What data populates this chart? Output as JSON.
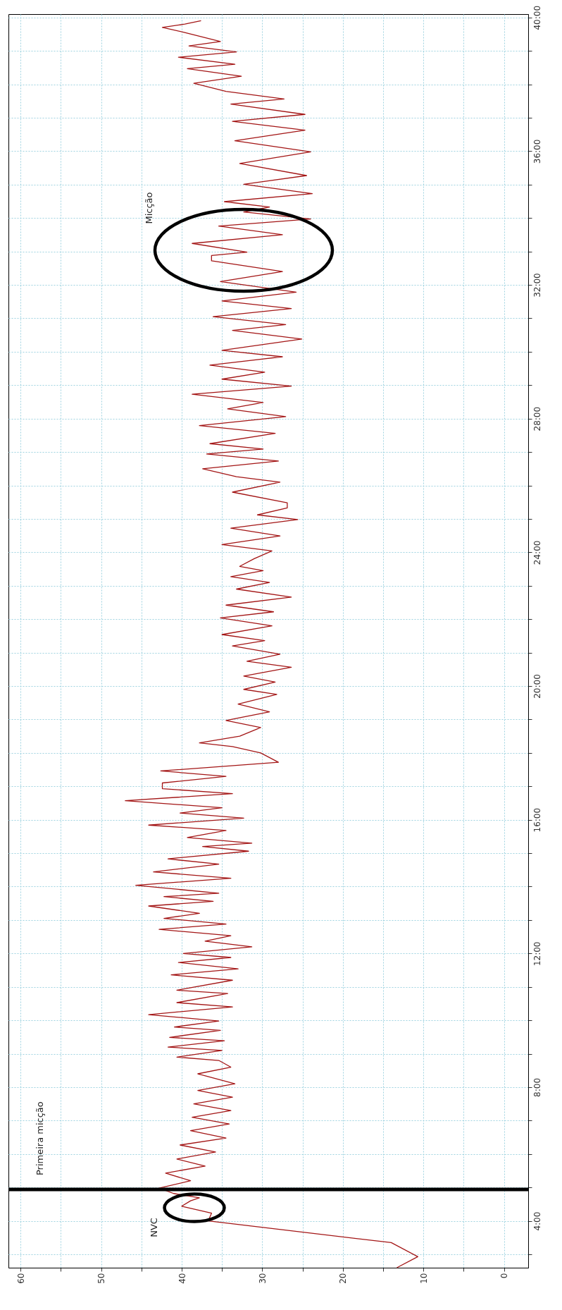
{
  "chart_data": {
    "type": "line",
    "x": [
      13.3,
      10.7,
      14,
      36.7,
      36.3,
      40,
      38.9,
      37.8,
      41,
      42.8,
      38.9,
      42,
      37.1,
      40.6,
      35.8,
      40.2,
      34.5,
      38.9,
      34.1,
      38.7,
      33.9,
      38.5,
      33.7,
      38,
      33.4,
      38,
      33.9,
      35.4,
      40.6,
      35,
      41.7,
      34.7,
      41.5,
      35.2,
      40.9,
      35.4,
      44.1,
      33.7,
      40.6,
      34.3,
      40.6,
      33.7,
      41.3,
      33,
      40.4,
      33.9,
      39.8,
      31.3,
      37.1,
      33.9,
      42.8,
      34.5,
      42.2,
      37.8,
      44.1,
      36.1,
      42.2,
      35.4,
      45.7,
      33.9,
      43.5,
      35.4,
      41.7,
      31.7,
      37.4,
      31.3,
      39.3,
      34.5,
      44.1,
      32.3,
      40.2,
      35,
      47,
      33.7,
      42.4,
      42.4,
      34.5,
      42.6,
      28,
      30.2,
      33.7,
      37.8,
      32.8,
      30.2,
      34.5,
      29.1,
      33,
      28.2,
      32.3,
      28.4,
      32.3,
      26.4,
      31.9,
      27.8,
      33.7,
      29.7,
      35,
      28.8,
      35.2,
      28.6,
      34.5,
      26.4,
      33.2,
      29.1,
      33.9,
      29.9,
      32.8,
      31,
      28.8,
      35,
      27.8,
      33.9,
      25.6,
      30.6,
      26.9,
      26.9,
      33.7,
      27.8,
      33.2,
      37.4,
      28,
      36.9,
      29.9,
      36.5,
      28.4,
      37.8,
      27.1,
      34.3,
      29.9,
      38.7,
      26.4,
      35,
      29.7,
      36.5,
      27.5,
      35,
      25.1,
      33.7,
      27.1,
      36.1,
      26.4,
      35,
      25.8,
      35.2,
      27.5,
      36.3,
      36.3,
      31.9,
      38.7,
      27.5,
      35.4,
      24,
      32.3,
      29.1,
      34.7,
      23.8,
      32.3,
      24.5,
      32.8,
      24,
      33.4,
      24.7,
      33.7,
      24.7,
      33.9,
      27.3,
      34.5,
      38.5,
      32.6,
      39.3,
      33.4,
      40.4,
      33.2,
      39.1,
      35.2,
      39.8,
      42.4,
      39.6,
      37.6
    ],
    "series": [
      {
        "color": "#a31515",
        "values": [
          2.6,
          2.93,
          3.35,
          4.0,
          4.23,
          4.44,
          4.6,
          4.69,
          4.82,
          4.98,
          5.2,
          5.43,
          5.64,
          5.85,
          6.06,
          6.27,
          6.48,
          6.7,
          6.9,
          7.1,
          7.3,
          7.5,
          7.7,
          7.9,
          8.1,
          8.4,
          8.6,
          8.8,
          8.9,
          9.1,
          9.2,
          9.39,
          9.49,
          9.7,
          9.8,
          9.98,
          10.17,
          10.4,
          10.53,
          10.8,
          10.9,
          11.2,
          11.36,
          11.54,
          11.73,
          11.88,
          12.0,
          12.2,
          12.37,
          12.53,
          12.72,
          12.88,
          13.05,
          13.2,
          13.42,
          13.56,
          13.7,
          13.8,
          14.04,
          14.25,
          14.44,
          14.67,
          14.83,
          15.06,
          15.2,
          15.3,
          15.47,
          15.68,
          15.84,
          16.05,
          16.2,
          16.36,
          16.57,
          16.78,
          16.93,
          17.1,
          17.3,
          17.46,
          17.72,
          18.0,
          18.19,
          18.3,
          18.5,
          18.76,
          18.97,
          19.23,
          19.46,
          19.75,
          19.9,
          20.12,
          20.3,
          20.56,
          20.74,
          20.95,
          21.2,
          21.36,
          21.54,
          21.8,
          22.04,
          22.22,
          22.42,
          22.66,
          22.9,
          23.1,
          23.27,
          23.45,
          23.58,
          23.81,
          24.04,
          24.23,
          24.49,
          24.72,
          24.98,
          25.12,
          25.33,
          25.48,
          25.8,
          26.1,
          26.26,
          26.5,
          26.73,
          26.94,
          27.09,
          27.25,
          27.56,
          27.79,
          28.06,
          28.29,
          28.48,
          28.73,
          28.97,
          29.18,
          29.39,
          29.6,
          29.85,
          30.04,
          30.38,
          30.64,
          30.81,
          31.05,
          31.29,
          31.52,
          31.78,
          32.1,
          32.4,
          32.72,
          32.88,
          32.98,
          33.24,
          33.5,
          33.76,
          33.97,
          34.18,
          34.33,
          34.49,
          34.73,
          35.01,
          35.27,
          35.63,
          35.98,
          36.31,
          36.63,
          36.89,
          37.1,
          37.41,
          37.56,
          37.79,
          38.03,
          38.24,
          38.47,
          38.6,
          38.81,
          38.97,
          39.15,
          39.28,
          39.56,
          39.7,
          39.8,
          39.9
        ]
      }
    ],
    "ylim": [
      2.6,
      40.1
    ],
    "yticks": [
      {
        "value": 3,
        "label": null
      },
      {
        "value": 4,
        "label": "4:00"
      },
      {
        "value": 5,
        "label": null
      },
      {
        "value": 6,
        "label": null
      },
      {
        "value": 7,
        "label": null
      },
      {
        "value": 8,
        "label": "8:00"
      },
      {
        "value": 9,
        "label": null
      },
      {
        "value": 10,
        "label": null
      },
      {
        "value": 11,
        "label": null
      },
      {
        "value": 12,
        "label": "12:00"
      },
      {
        "value": 13,
        "label": null
      },
      {
        "value": 14,
        "label": null
      },
      {
        "value": 15,
        "label": null
      },
      {
        "value": 16,
        "label": "16:00"
      },
      {
        "value": 17,
        "label": null
      },
      {
        "value": 18,
        "label": null
      },
      {
        "value": 19,
        "label": null
      },
      {
        "value": 20,
        "label": "20:00"
      },
      {
        "value": 21,
        "label": null
      },
      {
        "value": 22,
        "label": null
      },
      {
        "value": 23,
        "label": null
      },
      {
        "value": 24,
        "label": "24:00"
      },
      {
        "value": 25,
        "label": null
      },
      {
        "value": 26,
        "label": null
      },
      {
        "value": 27,
        "label": null
      },
      {
        "value": 28,
        "label": "28:00"
      },
      {
        "value": 29,
        "label": null
      },
      {
        "value": 30,
        "label": null
      },
      {
        "value": 31,
        "label": null
      },
      {
        "value": 32,
        "label": "32:00"
      },
      {
        "value": 33,
        "label": null
      },
      {
        "value": 34,
        "label": null
      },
      {
        "value": 35,
        "label": null
      },
      {
        "value": 36,
        "label": "36:00"
      },
      {
        "value": 37,
        "label": null
      },
      {
        "value": 38,
        "label": null
      },
      {
        "value": 39,
        "label": null
      },
      {
        "value": 40,
        "label": "40:00"
      }
    ],
    "xlim": [
      61.5,
      -3
    ],
    "xticks": [
      60,
      {
        "value": 55,
        "label": null
      },
      50,
      {
        "value": 45,
        "label": null
      },
      40,
      {
        "value": 35,
        "label": null
      },
      30,
      {
        "value": 25,
        "label": null
      },
      20,
      {
        "value": 15,
        "label": null
      },
      10,
      {
        "value": 5,
        "label": null
      },
      0
    ],
    "grid": true,
    "ref_lines": [
      {
        "axis": "y",
        "value": 4.94,
        "label": "Primeira micção",
        "color": "#000000"
      }
    ],
    "annotations": [
      "NVC",
      "Micção"
    ]
  }
}
